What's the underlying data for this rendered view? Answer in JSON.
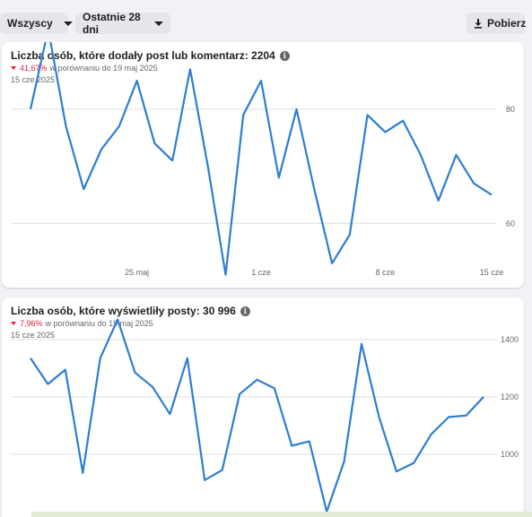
{
  "toolbar": {
    "audience_filter": "Wszyscy",
    "range_filter": "Ostatnie 28 dni",
    "download_label": "Pobierz"
  },
  "cards": [
    {
      "title": "Liczba osób, które dodały post lub komentarz: 2204",
      "change_percent": "41,67%",
      "compare_text": "w porównaniu do 19 maj 2025",
      "date_label": "15 cze 2025"
    },
    {
      "title": "Liczba osób, które wyświetliły posty: 30 996",
      "change_percent": "7,96%",
      "compare_text": "w porównaniu do 19 maj 2025",
      "date_label": "15 cze 2025"
    }
  ],
  "colors": {
    "line": "#2d7dd2",
    "decrease": "#e41e3f",
    "grid": "#dddfe2"
  },
  "icons": {
    "dropdown": "chevron-down-icon",
    "download": "download-icon",
    "info": "info-icon",
    "decrease": "triangle-down-icon"
  },
  "chart_data": [
    {
      "type": "line",
      "x_tick_labels": [
        "25 maj",
        "1 cze",
        "8 cze",
        "15 cze"
      ],
      "y_ticks": [
        60,
        80
      ],
      "ylim": [
        50,
        96
      ],
      "grid": true,
      "y_axis_side": "right",
      "values": [
        80,
        94,
        77,
        66,
        73,
        77,
        85,
        74,
        71,
        87,
        70,
        51,
        79,
        85,
        68,
        80,
        66,
        53,
        58,
        79,
        76,
        78,
        72,
        64,
        72,
        67,
        65
      ]
    },
    {
      "type": "line",
      "x_tick_labels": [],
      "y_ticks": [
        1000,
        1200,
        1400
      ],
      "ylim": [
        800,
        1600
      ],
      "grid": true,
      "y_axis_side": "right",
      "values": [
        1335,
        1245,
        1295,
        935,
        1335,
        1470,
        1285,
        1235,
        1140,
        1335,
        910,
        945,
        1210,
        1260,
        1230,
        1030,
        1045,
        800,
        975,
        1385,
        1130,
        940,
        970,
        1070,
        1130,
        1135,
        1200
      ]
    }
  ]
}
